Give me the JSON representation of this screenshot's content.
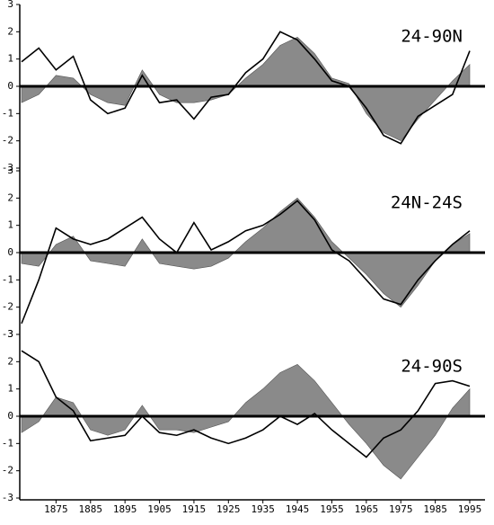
{
  "chart_data": [
    {
      "type": "area-line",
      "title": "24-90N",
      "x": [
        1865,
        1870,
        1875,
        1880,
        1885,
        1890,
        1895,
        1900,
        1905,
        1910,
        1915,
        1920,
        1925,
        1930,
        1935,
        1940,
        1945,
        1950,
        1955,
        1960,
        1965,
        1970,
        1975,
        1980,
        1985,
        1990,
        1995
      ],
      "series": [
        {
          "kind": "area",
          "color": "#8a8a8a",
          "values": [
            -0.6,
            -0.3,
            0.4,
            0.3,
            -0.3,
            -0.6,
            -0.7,
            0.6,
            -0.3,
            -0.6,
            -0.6,
            -0.5,
            -0.3,
            0.3,
            0.8,
            1.5,
            1.8,
            1.2,
            0.3,
            0.1,
            -1.0,
            -1.7,
            -2.0,
            -1.2,
            -0.5,
            0.2,
            0.8
          ]
        },
        {
          "kind": "line",
          "color": "#000000",
          "values": [
            0.9,
            1.4,
            0.6,
            1.1,
            -0.5,
            -1.0,
            -0.8,
            0.4,
            -0.6,
            -0.5,
            -1.2,
            -0.4,
            -0.3,
            0.5,
            1.0,
            2.0,
            1.7,
            1.0,
            0.2,
            0.0,
            -0.8,
            -1.8,
            -2.1,
            -1.1,
            -0.7,
            -0.3,
            1.3
          ]
        }
      ],
      "xlim": [
        1865,
        1995
      ],
      "ylim": [
        -3,
        3
      ],
      "yticks": [
        -3,
        -2,
        -1,
        0,
        1,
        2,
        3
      ]
    },
    {
      "type": "area-line",
      "title": "24N-24S",
      "x": [
        1865,
        1870,
        1875,
        1880,
        1885,
        1890,
        1895,
        1900,
        1905,
        1910,
        1915,
        1920,
        1925,
        1930,
        1935,
        1940,
        1945,
        1950,
        1955,
        1960,
        1965,
        1970,
        1975,
        1980,
        1985,
        1990,
        1995
      ],
      "series": [
        {
          "kind": "area",
          "color": "#8a8a8a",
          "values": [
            -0.4,
            -0.5,
            0.3,
            0.6,
            -0.3,
            -0.4,
            -0.5,
            0.5,
            -0.4,
            -0.5,
            -0.6,
            -0.5,
            -0.2,
            0.4,
            0.9,
            1.5,
            2.0,
            1.3,
            0.4,
            -0.2,
            -0.8,
            -1.5,
            -2.0,
            -1.2,
            -0.3,
            0.3,
            0.7
          ]
        },
        {
          "kind": "line",
          "color": "#000000",
          "values": [
            -2.6,
            -1.0,
            0.9,
            0.5,
            0.3,
            0.5,
            0.9,
            1.3,
            0.5,
            0.0,
            1.1,
            0.1,
            0.4,
            0.8,
            1.0,
            1.4,
            1.9,
            1.2,
            0.1,
            -0.3,
            -1.0,
            -1.7,
            -1.9,
            -1.0,
            -0.3,
            0.3,
            0.8
          ]
        }
      ],
      "xlim": [
        1865,
        1995
      ],
      "ylim": [
        -3,
        3
      ],
      "yticks": [
        -3,
        -2,
        -1,
        0,
        1,
        2,
        3
      ]
    },
    {
      "type": "area-line",
      "title": "24-90S",
      "x": [
        1865,
        1870,
        1875,
        1880,
        1885,
        1890,
        1895,
        1900,
        1905,
        1910,
        1915,
        1920,
        1925,
        1930,
        1935,
        1940,
        1945,
        1950,
        1955,
        1960,
        1965,
        1970,
        1975,
        1980,
        1985,
        1990,
        1995
      ],
      "series": [
        {
          "kind": "area",
          "color": "#8a8a8a",
          "values": [
            -0.6,
            -0.2,
            0.7,
            0.5,
            -0.5,
            -0.7,
            -0.5,
            0.4,
            -0.5,
            -0.5,
            -0.6,
            -0.4,
            -0.2,
            0.5,
            1.0,
            1.6,
            1.9,
            1.3,
            0.5,
            -0.3,
            -1.0,
            -1.8,
            -2.3,
            -1.5,
            -0.7,
            0.3,
            1.0
          ]
        },
        {
          "kind": "line",
          "color": "#000000",
          "values": [
            2.4,
            2.0,
            0.7,
            0.2,
            -0.9,
            -0.8,
            -0.7,
            0.0,
            -0.6,
            -0.7,
            -0.5,
            -0.8,
            -1.0,
            -0.8,
            -0.5,
            0.0,
            -0.3,
            0.1,
            -0.5,
            -1.0,
            -1.5,
            -0.8,
            -0.5,
            0.2,
            1.2,
            1.3,
            1.1
          ]
        }
      ],
      "xlim": [
        1865,
        1995
      ],
      "ylim": [
        -3,
        3
      ],
      "yticks": [
        -3,
        -2,
        -1,
        0,
        1,
        2,
        3
      ],
      "xticks": [
        1875,
        1885,
        1895,
        1905,
        1915,
        1925,
        1935,
        1945,
        1955,
        1965,
        1975,
        1985,
        1995
      ]
    }
  ]
}
